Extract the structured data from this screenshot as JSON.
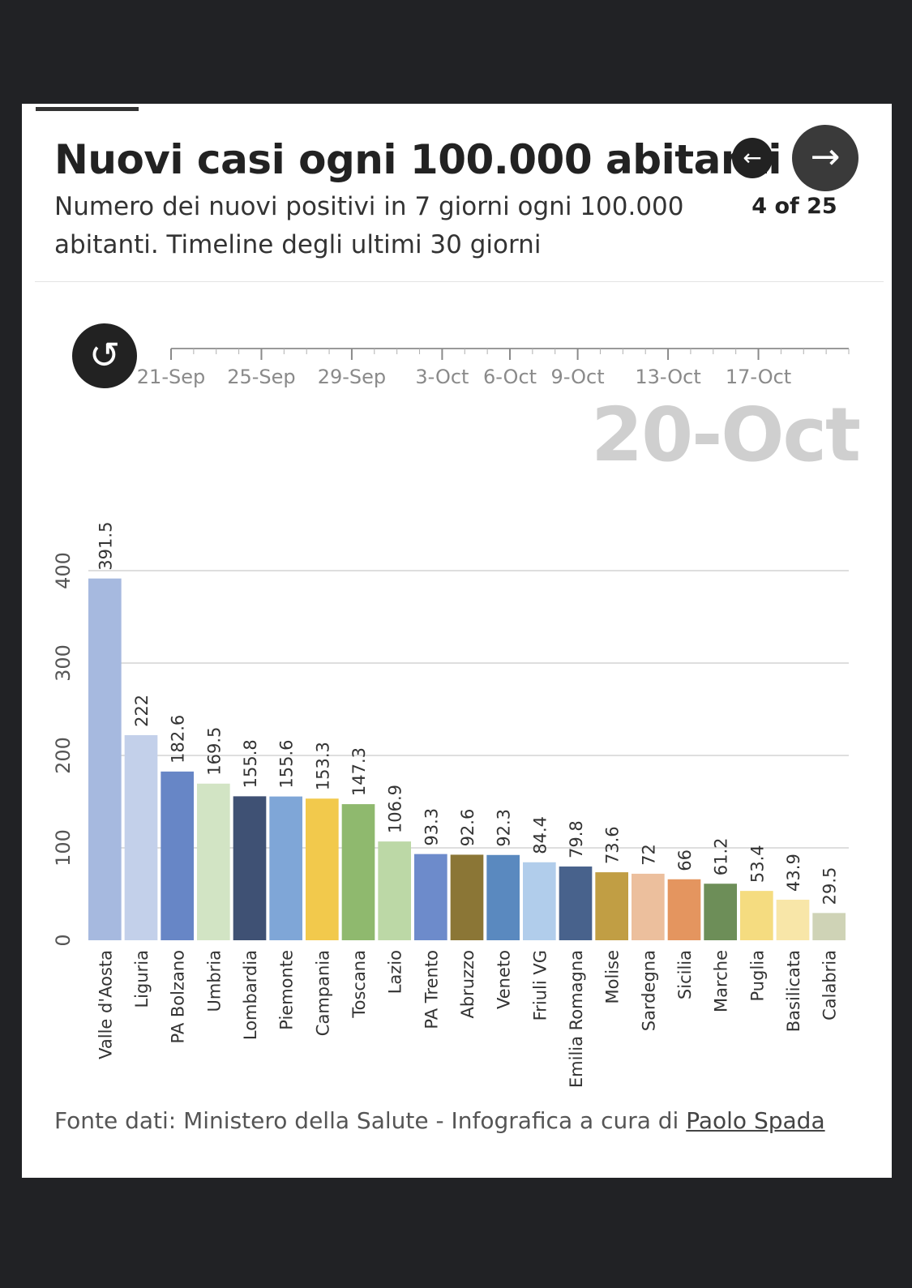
{
  "header": {
    "title": "Nuovi casi ogni 100.000 abitanti",
    "subtitle": "Numero dei nuovi positivi in 7 giorni ogni 100.000 abitanti. Timeline degli ultimi 30 giorni",
    "pager": "4 of 25",
    "prev_icon": "arrow-left-icon",
    "next_icon": "arrow-right-icon"
  },
  "timeline": {
    "replay_icon": "replay-icon",
    "labels": [
      "21-Sep",
      "25-Sep",
      "29-Sep",
      "3-Oct",
      "6-Oct",
      "9-Oct",
      "13-Oct",
      "17-Oct"
    ],
    "current": "20-Oct"
  },
  "footer": {
    "source_text": "Fonte dati: Ministero della Salute - Infografica a cura di ",
    "source_link": "Paolo Spada"
  },
  "chart_data": {
    "type": "bar",
    "orientation": "vertical",
    "ylim": [
      0,
      400
    ],
    "yticks": [
      0,
      100,
      200,
      300,
      400
    ],
    "grid": true,
    "categories": [
      "Valle d'Aosta",
      "Liguria",
      "PA Bolzano",
      "Umbria",
      "Lombardia",
      "Piemonte",
      "Campania",
      "Toscana",
      "Lazio",
      "PA Trento",
      "Abruzzo",
      "Veneto",
      "Friuli VG",
      "Emilia Romagna",
      "Molise",
      "Sardegna",
      "Sicilia",
      "Marche",
      "Puglia",
      "Basilicata",
      "Calabria"
    ],
    "values": [
      391.5,
      222,
      182.6,
      169.5,
      155.8,
      155.6,
      153.3,
      147.3,
      106.9,
      93.3,
      92.6,
      92.3,
      84.4,
      79.8,
      73.6,
      72,
      66,
      61.2,
      53.4,
      43.9,
      29.5
    ],
    "value_labels": [
      "391.5",
      "222",
      "182.6",
      "169.5",
      "155.8",
      "155.6",
      "153.3",
      "147.3",
      "106.9",
      "93.3",
      "92.6",
      "92.3",
      "84.4",
      "79.8",
      "73.6",
      "72",
      "66",
      "61.2",
      "53.4",
      "43.9",
      "29.5"
    ],
    "colors": [
      "#a6b9df",
      "#c3d0ea",
      "#6786c6",
      "#d2e4c4",
      "#3f5174",
      "#7fa6d7",
      "#f2c94c",
      "#8fb96e",
      "#bcd8a6",
      "#6d8bcb",
      "#8b7636",
      "#5a89bf",
      "#b1cdeb",
      "#48628c",
      "#c19e44",
      "#ecbf9d",
      "#e4955f",
      "#6d8e58",
      "#f5dc80",
      "#f8e6a8",
      "#cfd3b6"
    ]
  }
}
